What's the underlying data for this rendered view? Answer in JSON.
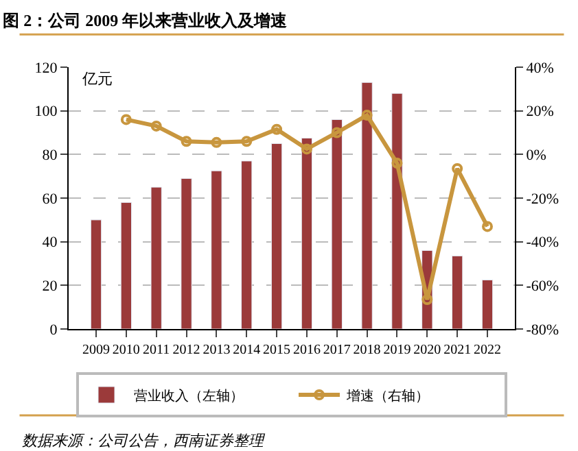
{
  "chart_data": {
    "type": "bar",
    "title": "图 2：公司 2009 年以来营业收入及增速",
    "categories": [
      "2009",
      "2010",
      "2011",
      "2012",
      "2013",
      "2014",
      "2015",
      "2016",
      "2017",
      "2018",
      "2019",
      "2020",
      "2021",
      "2022"
    ],
    "series": [
      {
        "name": "营业收入（左轴）",
        "color": "#9b3a3a",
        "values": [
          50,
          58,
          65,
          69,
          72.5,
          77,
          85,
          87.5,
          96,
          113,
          108,
          36,
          33.5,
          22.5
        ]
      },
      {
        "name": "增速（右轴）",
        "type": "line",
        "axis": "y2",
        "color": "#c8963e",
        "marker": "circle",
        "values": [
          null,
          16,
          13,
          6,
          5.5,
          6,
          11.5,
          2.5,
          10,
          18,
          -4,
          -66.5,
          -6.5,
          -33
        ]
      }
    ],
    "ylim": [
      0,
      120
    ],
    "yticks": [
      0,
      20,
      40,
      60,
      80,
      100,
      120
    ],
    "y2lim": [
      -80,
      40
    ],
    "y2ticks": [
      {
        "value": -80,
        "label": "-80%"
      },
      {
        "value": -60,
        "label": "-60%"
      },
      {
        "value": -40,
        "label": "-40%"
      },
      {
        "value": -20,
        "label": "-20%"
      },
      {
        "value": 0,
        "label": "0%"
      },
      {
        "value": 20,
        "label": "20%"
      },
      {
        "value": 40,
        "label": "40%"
      }
    ],
    "grid": "y",
    "legend": "bottom",
    "annotations": [
      "亿元",
      "数据来源：公司公告，西南证券整理"
    ]
  }
}
